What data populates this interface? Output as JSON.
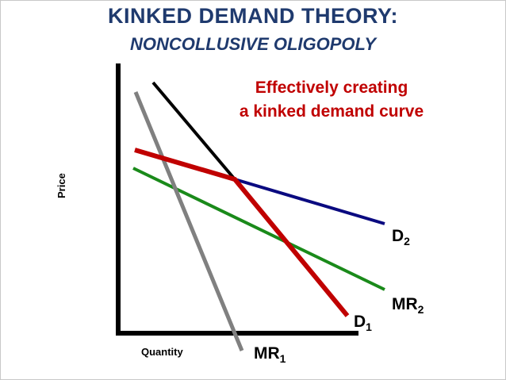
{
  "title": "KINKED DEMAND THEORY:",
  "subtitle": "NONCOLLUSIVE OLIGOPOLY",
  "annotation": {
    "line1": "Effectively creating",
    "line2": "a kinked demand curve"
  },
  "axes": {
    "ylabel": "Price",
    "xlabel": "Quantity"
  },
  "curves": {
    "D2": {
      "letter": "D",
      "sub": "2"
    },
    "MR2": {
      "letter": "MR",
      "sub": "2"
    },
    "D1": {
      "letter": "D",
      "sub": "1"
    },
    "MR1": {
      "letter": "MR",
      "sub": "1"
    }
  },
  "colors": {
    "title": "#1f3a6e",
    "annotation": "#c00000",
    "D1": "#000000",
    "D2": "#0a0a80",
    "MR2": "#1a8a1a",
    "MR1": "#808080",
    "kinked": "#c00000"
  }
}
